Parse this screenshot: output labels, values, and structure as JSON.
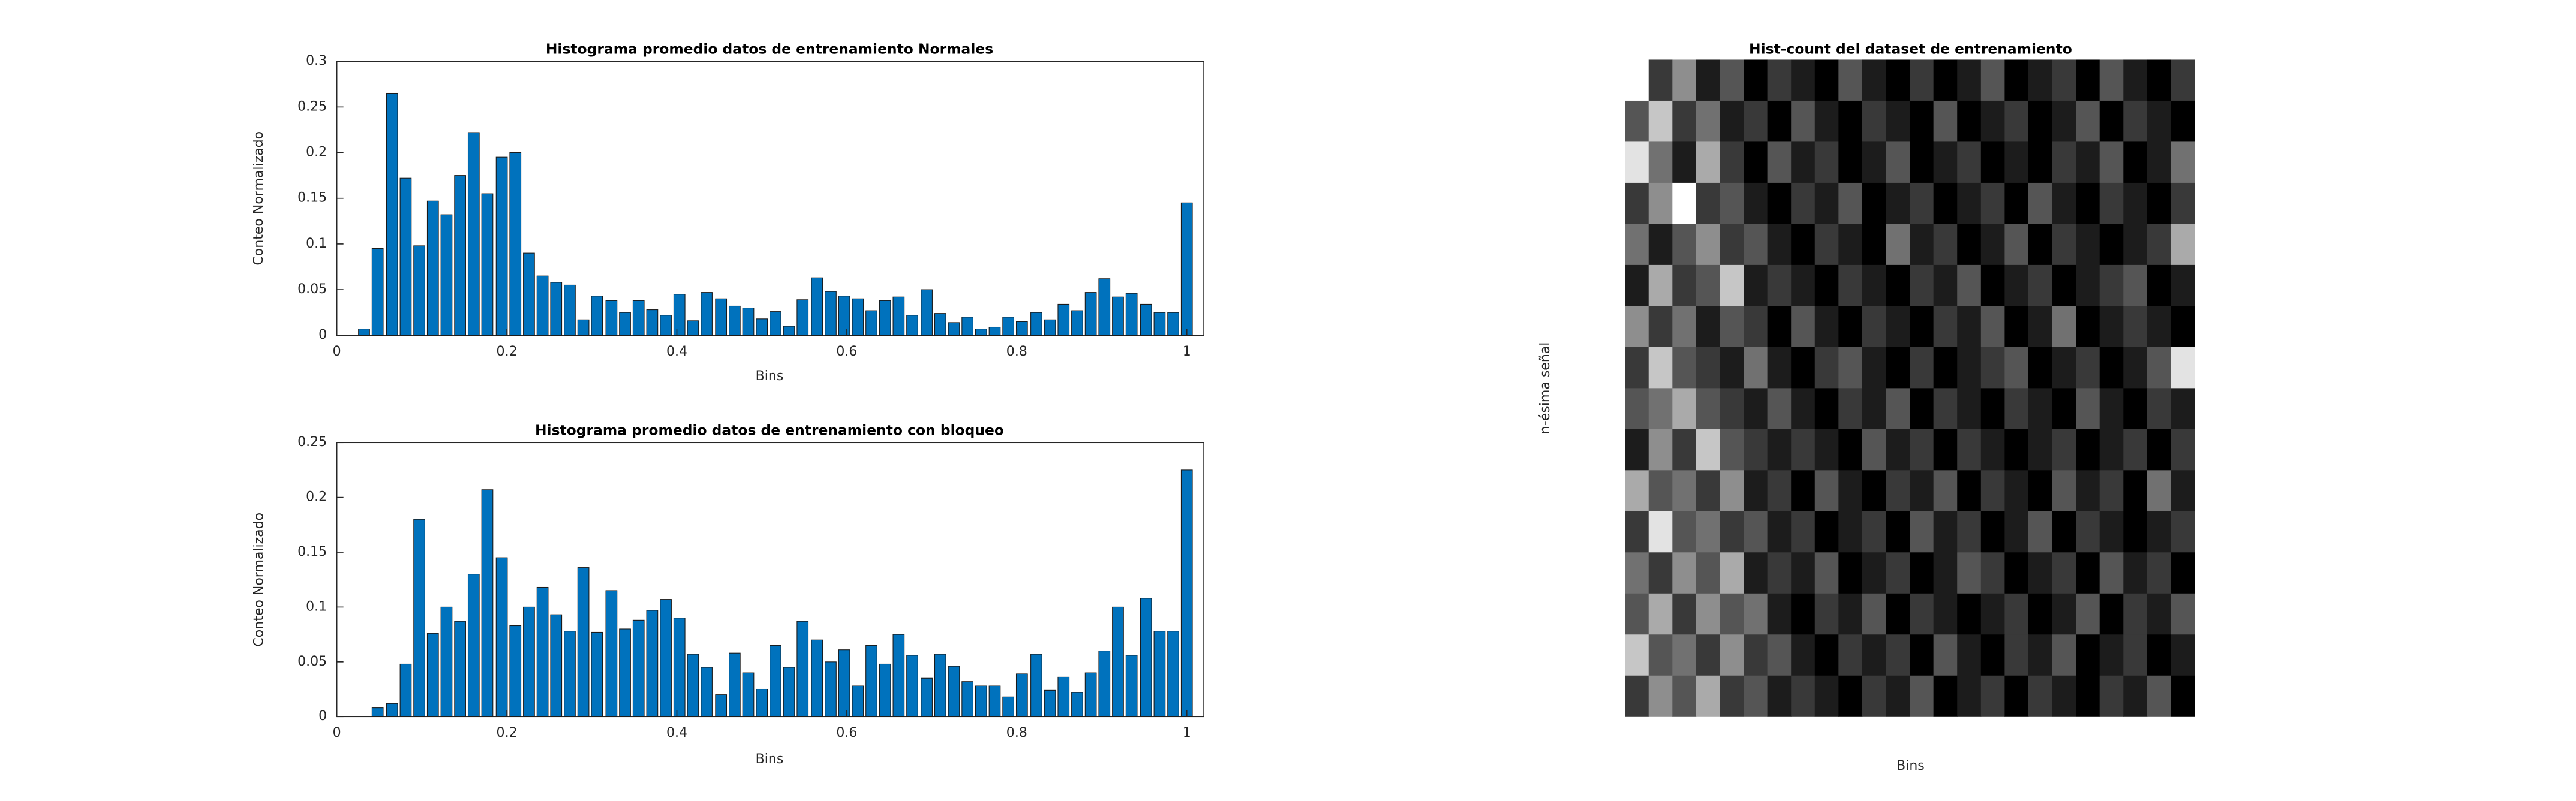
{
  "chart_data": [
    {
      "type": "bar",
      "title": "Histograma promedio datos de entrenamiento Normales",
      "xlabel": "Bins",
      "ylabel": "Conteo Normalizado",
      "color": "#0072bd",
      "x": [
        0,
        0.016,
        0.032,
        0.048,
        0.065,
        0.081,
        0.097,
        0.113,
        0.129,
        0.145,
        0.161,
        0.177,
        0.194,
        0.21,
        0.226,
        0.242,
        0.258,
        0.274,
        0.29,
        0.306,
        0.323,
        0.339,
        0.355,
        0.371,
        0.387,
        0.403,
        0.419,
        0.435,
        0.452,
        0.468,
        0.484,
        0.5,
        0.516,
        0.532,
        0.548,
        0.565,
        0.581,
        0.597,
        0.613,
        0.629,
        0.645,
        0.661,
        0.677,
        0.694,
        0.71,
        0.726,
        0.742,
        0.758,
        0.774,
        0.79,
        0.806,
        0.823,
        0.839,
        0.855,
        0.871,
        0.887,
        0.903,
        0.919,
        0.935,
        0.952,
        0.968,
        0.984,
        1
      ],
      "values": [
        0,
        0,
        0.007,
        0.095,
        0.265,
        0.172,
        0.098,
        0.147,
        0.132,
        0.175,
        0.222,
        0.155,
        0.195,
        0.2,
        0.09,
        0.065,
        0.058,
        0.055,
        0.017,
        0.043,
        0.038,
        0.025,
        0.038,
        0.028,
        0.022,
        0.045,
        0.016,
        0.047,
        0.04,
        0.032,
        0.03,
        0.018,
        0.026,
        0.01,
        0.039,
        0.063,
        0.048,
        0.043,
        0.04,
        0.027,
        0.038,
        0.042,
        0.022,
        0.05,
        0.024,
        0.014,
        0.02,
        0.007,
        0.009,
        0.02,
        0.015,
        0.025,
        0.017,
        0.034,
        0.027,
        0.047,
        0.062,
        0.042,
        0.046,
        0.034,
        0.025,
        0.025,
        0.145
      ],
      "xlim": [
        0,
        1.02
      ],
      "xticks": [
        0,
        0.2,
        0.4,
        0.6,
        0.8,
        1
      ],
      "ylim": [
        0,
        0.3
      ],
      "yticks": [
        0,
        0.05,
        0.1,
        0.15,
        0.2,
        0.25,
        0.3
      ]
    },
    {
      "type": "bar",
      "title": "Histograma promedio datos de entrenamiento con bloqueo",
      "xlabel": "Bins",
      "ylabel": "Conteo Normalizado",
      "color": "#0072bd",
      "x": [
        0,
        0.016,
        0.032,
        0.048,
        0.065,
        0.081,
        0.097,
        0.113,
        0.129,
        0.145,
        0.161,
        0.177,
        0.194,
        0.21,
        0.226,
        0.242,
        0.258,
        0.274,
        0.29,
        0.306,
        0.323,
        0.339,
        0.355,
        0.371,
        0.387,
        0.403,
        0.419,
        0.435,
        0.452,
        0.468,
        0.484,
        0.5,
        0.516,
        0.532,
        0.548,
        0.565,
        0.581,
        0.597,
        0.613,
        0.629,
        0.645,
        0.661,
        0.677,
        0.694,
        0.71,
        0.726,
        0.742,
        0.758,
        0.774,
        0.79,
        0.806,
        0.823,
        0.839,
        0.855,
        0.871,
        0.887,
        0.903,
        0.919,
        0.935,
        0.952,
        0.968,
        0.984,
        1
      ],
      "values": [
        0,
        0,
        0,
        0.008,
        0.012,
        0.048,
        0.18,
        0.076,
        0.1,
        0.087,
        0.13,
        0.207,
        0.145,
        0.083,
        0.1,
        0.118,
        0.093,
        0.078,
        0.136,
        0.077,
        0.115,
        0.08,
        0.088,
        0.097,
        0.107,
        0.09,
        0.057,
        0.045,
        0.02,
        0.058,
        0.04,
        0.025,
        0.065,
        0.045,
        0.087,
        0.07,
        0.05,
        0.061,
        0.028,
        0.065,
        0.048,
        0.075,
        0.056,
        0.035,
        0.057,
        0.046,
        0.032,
        0.028,
        0.028,
        0.018,
        0.039,
        0.057,
        0.024,
        0.036,
        0.022,
        0.04,
        0.06,
        0.1,
        0.056,
        0.108,
        0.078,
        0.078,
        0.225
      ],
      "xlim": [
        0,
        1.02
      ],
      "xticks": [
        0,
        0.2,
        0.4,
        0.6,
        0.8,
        1
      ],
      "ylim": [
        0,
        0.25
      ],
      "yticks": [
        0,
        0.05,
        0.1,
        0.15,
        0.2,
        0.25
      ]
    },
    {
      "type": "heatmap",
      "title": "Hist-count del dataset de entrenamiento",
      "xlabel": "Bins",
      "ylabel": "n-ésima señal",
      "colormap": "gray",
      "zlim": [
        0,
        9
      ],
      "z": [
        [
          9,
          2,
          5,
          1,
          3,
          0,
          2,
          1,
          0,
          3,
          1,
          0,
          2,
          0,
          1,
          3,
          0,
          1,
          2,
          0,
          3,
          1,
          0,
          2
        ],
        [
          3,
          7,
          2,
          4,
          1,
          2,
          0,
          3,
          1,
          0,
          2,
          1,
          0,
          3,
          0,
          1,
          2,
          0,
          1,
          3,
          0,
          2,
          1,
          0
        ],
        [
          8,
          4,
          1,
          6,
          2,
          0,
          3,
          1,
          2,
          0,
          1,
          3,
          0,
          1,
          2,
          0,
          1,
          0,
          2,
          1,
          3,
          0,
          1,
          4
        ],
        [
          2,
          5,
          9,
          2,
          3,
          1,
          0,
          2,
          1,
          3,
          0,
          1,
          2,
          0,
          1,
          2,
          0,
          3,
          1,
          0,
          2,
          1,
          0,
          2
        ],
        [
          4,
          1,
          3,
          5,
          2,
          3,
          1,
          0,
          2,
          1,
          0,
          4,
          1,
          2,
          0,
          1,
          3,
          0,
          2,
          1,
          0,
          1,
          2,
          6
        ],
        [
          1,
          6,
          2,
          3,
          7,
          1,
          2,
          1,
          0,
          2,
          1,
          0,
          2,
          1,
          3,
          0,
          1,
          2,
          0,
          1,
          2,
          3,
          0,
          1
        ],
        [
          5,
          2,
          4,
          1,
          3,
          2,
          0,
          3,
          1,
          0,
          2,
          1,
          0,
          2,
          1,
          3,
          0,
          1,
          4,
          0,
          1,
          2,
          1,
          0
        ],
        [
          2,
          7,
          3,
          2,
          1,
          4,
          1,
          0,
          2,
          3,
          1,
          0,
          2,
          0,
          1,
          2,
          3,
          0,
          1,
          2,
          0,
          1,
          3,
          8
        ],
        [
          3,
          4,
          6,
          3,
          2,
          1,
          3,
          1,
          0,
          2,
          1,
          3,
          0,
          2,
          1,
          0,
          2,
          1,
          0,
          3,
          1,
          0,
          2,
          1
        ],
        [
          1,
          5,
          2,
          7,
          3,
          2,
          1,
          2,
          1,
          0,
          3,
          1,
          2,
          0,
          2,
          1,
          0,
          1,
          2,
          0,
          1,
          2,
          0,
          2
        ],
        [
          6,
          3,
          4,
          2,
          5,
          1,
          2,
          0,
          3,
          1,
          0,
          2,
          1,
          3,
          0,
          2,
          1,
          0,
          3,
          1,
          2,
          0,
          4,
          1
        ],
        [
          2,
          8,
          3,
          4,
          2,
          3,
          1,
          2,
          0,
          1,
          2,
          0,
          3,
          1,
          2,
          0,
          1,
          3,
          0,
          2,
          1,
          0,
          1,
          2
        ],
        [
          4,
          2,
          5,
          3,
          6,
          1,
          2,
          1,
          3,
          0,
          1,
          2,
          0,
          1,
          3,
          2,
          0,
          1,
          2,
          0,
          3,
          1,
          2,
          0
        ],
        [
          3,
          6,
          2,
          5,
          3,
          4,
          1,
          0,
          2,
          1,
          3,
          0,
          2,
          1,
          0,
          1,
          2,
          0,
          1,
          3,
          0,
          2,
          1,
          3
        ],
        [
          7,
          3,
          4,
          2,
          5,
          2,
          3,
          1,
          0,
          2,
          1,
          2,
          0,
          3,
          1,
          0,
          2,
          1,
          3,
          0,
          1,
          2,
          0,
          1
        ],
        [
          2,
          5,
          3,
          6,
          2,
          3,
          1,
          2,
          1,
          0,
          2,
          1,
          3,
          0,
          1,
          2,
          0,
          2,
          1,
          0,
          2,
          1,
          3,
          0
        ]
      ]
    }
  ]
}
